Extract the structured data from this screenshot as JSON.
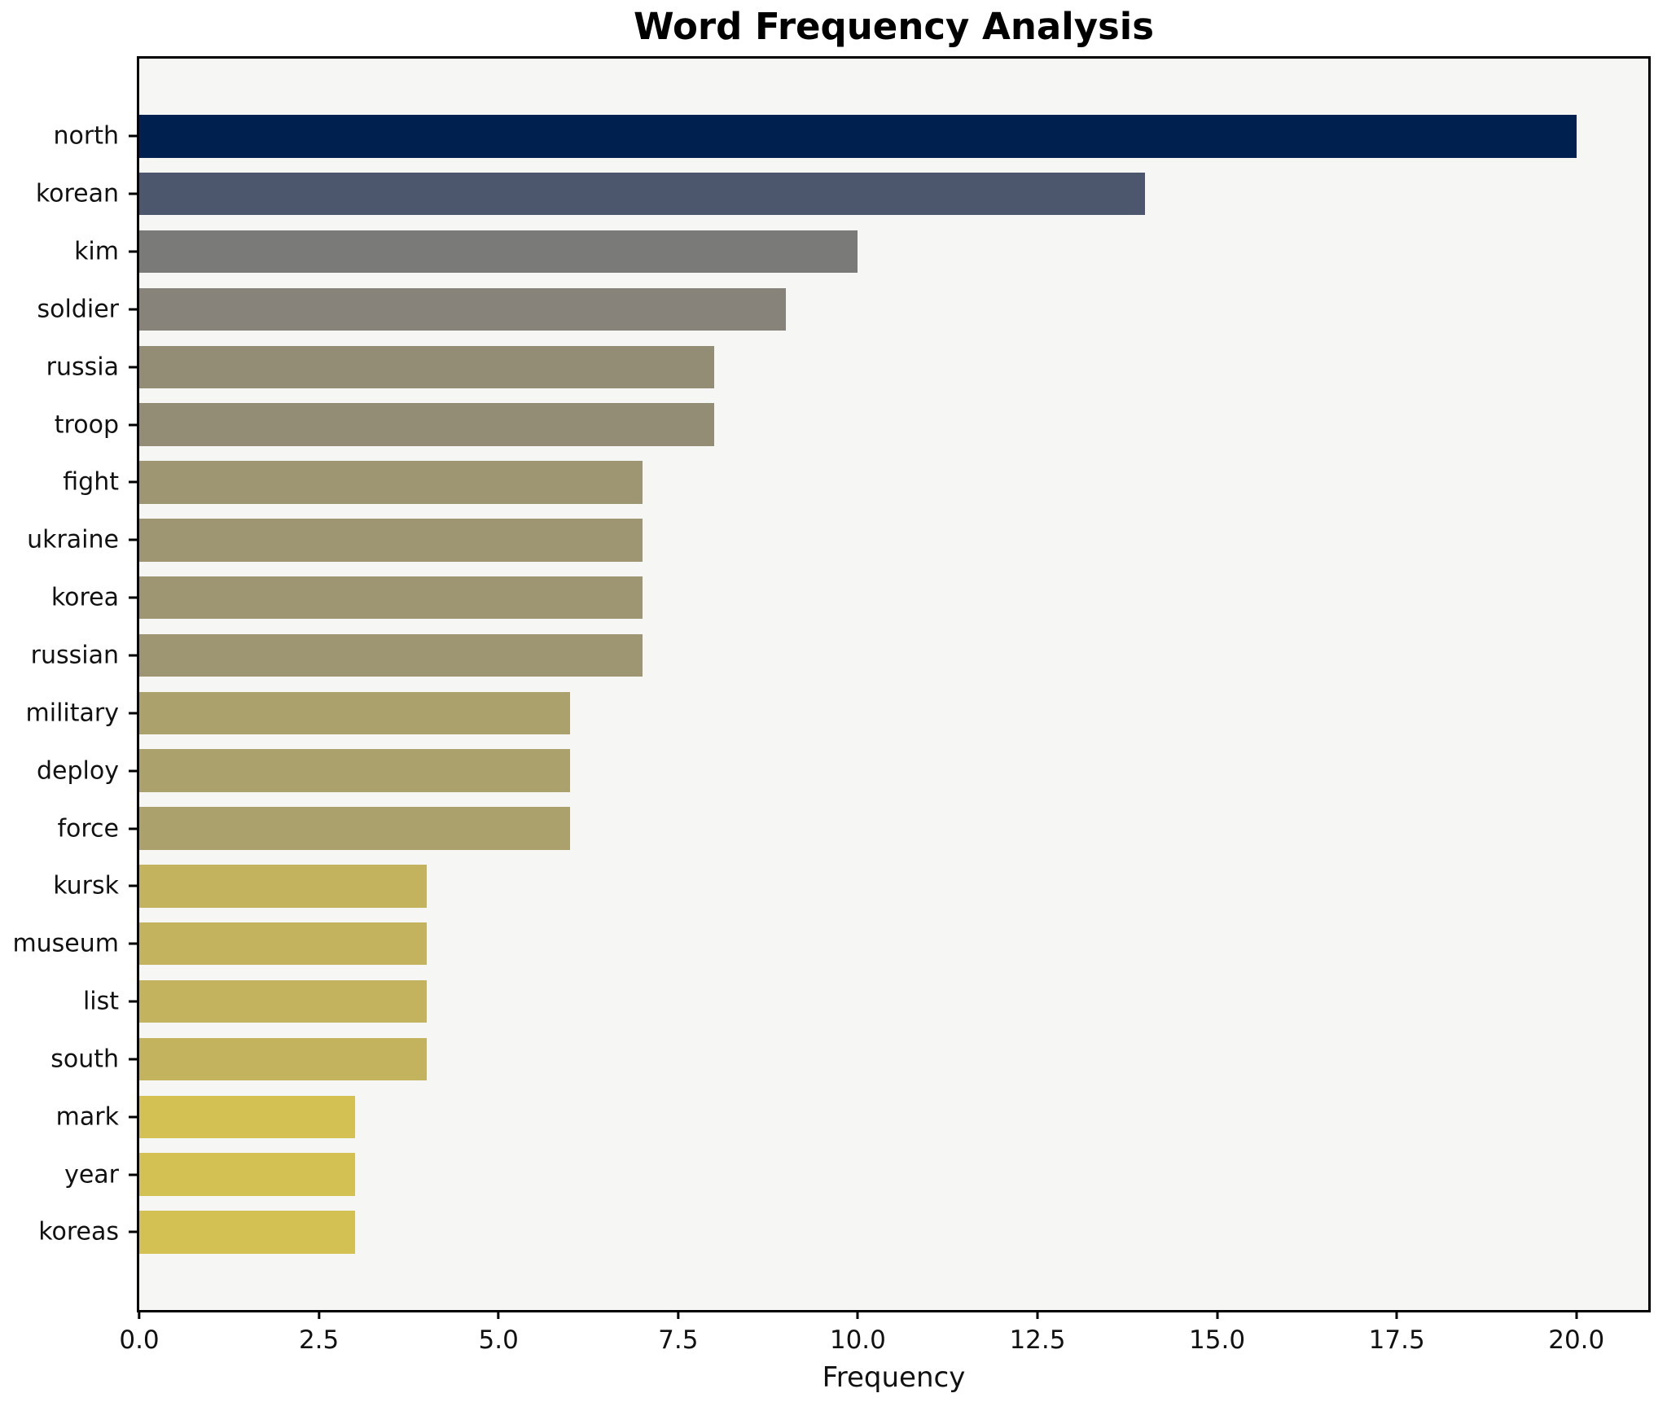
{
  "chart_data": {
    "type": "bar",
    "orientation": "horizontal",
    "title": "Word Frequency Analysis",
    "xlabel": "Frequency",
    "ylabel": "",
    "categories": [
      "north",
      "korean",
      "kim",
      "soldier",
      "russia",
      "troop",
      "fight",
      "ukraine",
      "korea",
      "russian",
      "military",
      "deploy",
      "force",
      "kursk",
      "museum",
      "list",
      "south",
      "mark",
      "year",
      "koreas"
    ],
    "values": [
      20,
      14,
      10,
      9,
      8,
      8,
      7,
      7,
      7,
      7,
      6,
      6,
      6,
      4,
      4,
      4,
      4,
      3,
      3,
      3
    ],
    "bar_colors": [
      "#00214f",
      "#4c566c",
      "#7a7a78",
      "#87827a",
      "#948d75",
      "#948d75",
      "#9e9672",
      "#9e9672",
      "#9e9672",
      "#9e9672",
      "#aba16d",
      "#aba16d",
      "#aba16d",
      "#c3b35e",
      "#c3b35e",
      "#c3b35e",
      "#c3b35e",
      "#d3c154",
      "#d3c154",
      "#d3c154"
    ],
    "xlim": [
      0,
      21
    ],
    "xticks": [
      0.0,
      2.5,
      5.0,
      7.5,
      10.0,
      12.5,
      15.0,
      17.5,
      20.0
    ],
    "xtick_labels": [
      "0.0",
      "2.5",
      "5.0",
      "7.5",
      "10.0",
      "12.5",
      "15.0",
      "17.5",
      "20.0"
    ],
    "grid": false,
    "legend": null,
    "colors": {
      "plot_background": "#f6f6f4",
      "figure_background": "#ffffff",
      "spine": "#000000",
      "text": "#111111"
    }
  }
}
